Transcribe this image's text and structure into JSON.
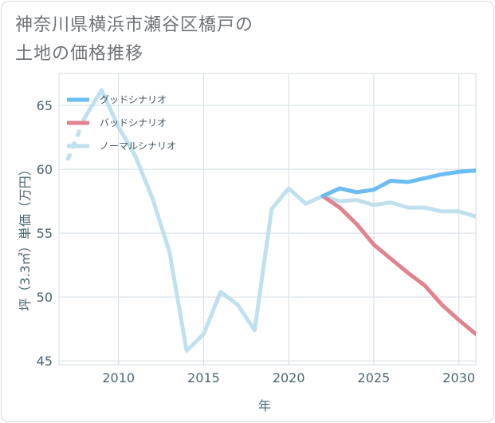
{
  "page_title": {
    "line1": "神奈川県横浜市瀬谷区橋戸の",
    "line2": "土地の価格推移"
  },
  "chart_data": {
    "type": "line",
    "title": "神奈川県横浜市瀬谷区橋戸の土地の価格推移",
    "xlabel": "年",
    "ylabel": "坪（3.3㎡）単価（万円）",
    "xlim": [
      2006.5,
      2031
    ],
    "ylim": [
      44.7,
      67.5
    ],
    "x_ticks": [
      2010,
      2015,
      2020,
      2025,
      2030
    ],
    "y_ticks": [
      45,
      50,
      55,
      60,
      65
    ],
    "x_tick_labels": [
      "2010",
      "2015",
      "2020",
      "2025",
      "2030"
    ],
    "y_tick_labels": [
      "45",
      "50",
      "55",
      "60",
      "65"
    ],
    "grid": true,
    "legend_position": "top-left",
    "series": [
      {
        "name": "グッドシナリオ",
        "color": "#6bbcf0",
        "x": [
          2022,
          2023,
          2024,
          2025,
          2026,
          2027,
          2028,
          2029,
          2030,
          2031
        ],
        "y": [
          57.9,
          58.5,
          58.2,
          58.4,
          59.1,
          59.0,
          59.3,
          59.6,
          59.8,
          59.9
        ]
      },
      {
        "name": "バッドシナリオ",
        "color": "#e0838c",
        "x": [
          2022,
          2023,
          2024,
          2025,
          2026,
          2027,
          2028,
          2029,
          2030,
          2031
        ],
        "y": [
          57.9,
          57.0,
          55.7,
          54.1,
          53.0,
          51.9,
          50.9,
          49.4,
          48.2,
          47.1
        ]
      },
      {
        "name": "ノーマルシナリオ",
        "color": "#bfe0ee",
        "x": [
          2007,
          2008,
          2009,
          2010,
          2011,
          2012,
          2013,
          2014,
          2015,
          2016,
          2017,
          2018,
          2019,
          2020,
          2021,
          2022,
          2023,
          2024,
          2025,
          2026,
          2027,
          2028,
          2029,
          2030,
          2031
        ],
        "y": [
          60.7,
          64.0,
          66.2,
          63.3,
          61.0,
          57.7,
          53.5,
          45.8,
          47.1,
          50.4,
          49.4,
          47.4,
          56.9,
          58.5,
          57.3,
          57.9,
          57.5,
          57.6,
          57.2,
          57.4,
          57.0,
          57.0,
          56.7,
          56.7,
          56.3
        ],
        "dashed_until": 2008
      }
    ]
  }
}
